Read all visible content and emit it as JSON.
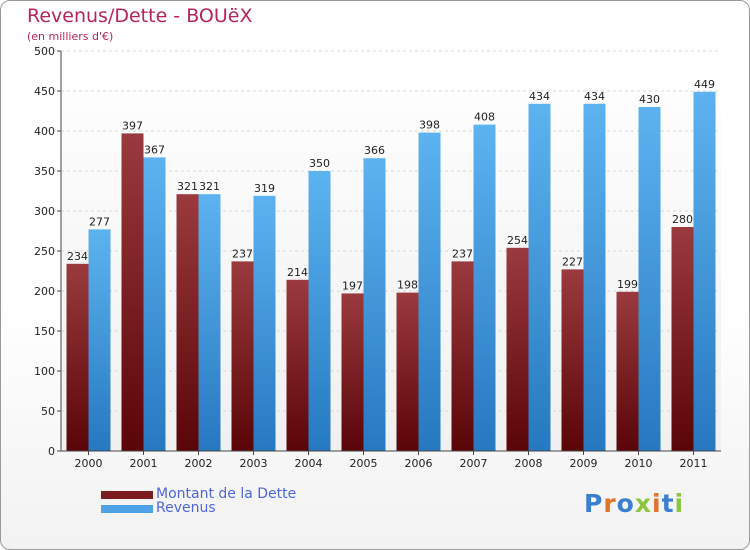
{
  "chart_data": {
    "type": "bar",
    "title": "Revenus/Dette - BOUëX",
    "subtitle": "(en milliers d'€)",
    "categories": [
      "2000",
      "2001",
      "2002",
      "2003",
      "2004",
      "2005",
      "2006",
      "2007",
      "2008",
      "2009",
      "2010",
      "2011"
    ],
    "series": [
      {
        "name": "Montant de la Dette",
        "color": "#7a1c20",
        "values": [
          234,
          397,
          321,
          237,
          214,
          197,
          198,
          237,
          254,
          227,
          199,
          280
        ]
      },
      {
        "name": "Revenus",
        "color": "#4da3e6",
        "values": [
          277,
          367,
          321,
          319,
          350,
          366,
          398,
          408,
          434,
          434,
          430,
          449
        ]
      }
    ],
    "ylim": [
      0,
      500
    ],
    "yticks": [
      0,
      50,
      100,
      150,
      200,
      250,
      300,
      350,
      400,
      450,
      500
    ],
    "grid": true,
    "legend_position": "bottom-left"
  },
  "logo": {
    "letters": [
      {
        "char": "P",
        "color": "#3a7fd0"
      },
      {
        "char": "r",
        "color": "#e0742a"
      },
      {
        "char": "o",
        "color": "#3a7fd0"
      },
      {
        "char": "x",
        "color": "#8cc63f"
      },
      {
        "char": "i",
        "color": "#e0742a"
      },
      {
        "char": "t",
        "color": "#3a7fd0"
      },
      {
        "char": "i",
        "color": "#8cc63f"
      }
    ]
  }
}
